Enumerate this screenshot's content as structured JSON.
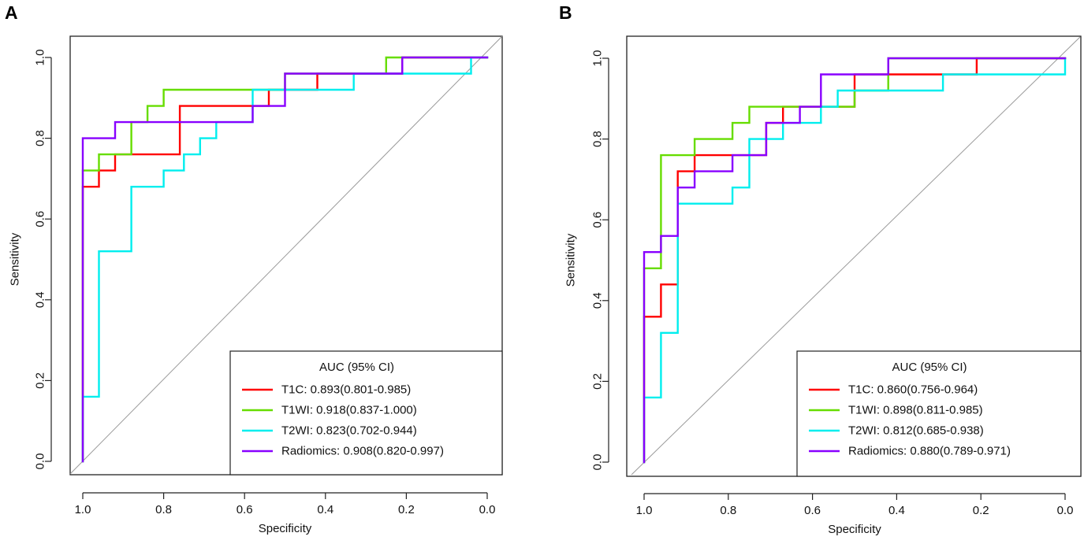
{
  "chart_data": [
    {
      "type": "line",
      "panel_label": "A",
      "xlabel": "Specificity",
      "ylabel": "Sensitivity",
      "xlim": [
        1.0,
        0.0
      ],
      "ylim": [
        0.0,
        1.0
      ],
      "xticks": [
        "1.0",
        "0.8",
        "0.6",
        "0.4",
        "0.2",
        "0.0"
      ],
      "yticks": [
        "0.0",
        "0.2",
        "0.4",
        "0.6",
        "0.8",
        "1.0"
      ],
      "diagonal": true,
      "legend_title": "AUC (95% CI)",
      "legend_position": "bottom-right",
      "series": [
        {
          "name": "T1C",
          "label": "T1C: 0.893(0.801-0.985)",
          "color": "#ff0000",
          "points": [
            [
              1.0,
              0.0
            ],
            [
              1.0,
              0.68
            ],
            [
              0.96,
              0.68
            ],
            [
              0.96,
              0.72
            ],
            [
              0.92,
              0.72
            ],
            [
              0.92,
              0.76
            ],
            [
              0.76,
              0.76
            ],
            [
              0.76,
              0.88
            ],
            [
              0.54,
              0.88
            ],
            [
              0.54,
              0.92
            ],
            [
              0.42,
              0.92
            ],
            [
              0.42,
              0.96
            ],
            [
              0.21,
              0.96
            ],
            [
              0.21,
              1.0
            ],
            [
              0.0,
              1.0
            ]
          ]
        },
        {
          "name": "T1WI",
          "label": "T1WI: 0.918(0.837-1.000)",
          "color": "#66dd00",
          "points": [
            [
              1.0,
              0.0
            ],
            [
              1.0,
              0.72
            ],
            [
              0.96,
              0.72
            ],
            [
              0.96,
              0.76
            ],
            [
              0.88,
              0.76
            ],
            [
              0.88,
              0.84
            ],
            [
              0.84,
              0.84
            ],
            [
              0.84,
              0.88
            ],
            [
              0.8,
              0.88
            ],
            [
              0.8,
              0.92
            ],
            [
              0.5,
              0.92
            ],
            [
              0.5,
              0.96
            ],
            [
              0.38,
              0.96
            ],
            [
              0.25,
              0.96
            ],
            [
              0.25,
              1.0
            ],
            [
              0.0,
              1.0
            ]
          ]
        },
        {
          "name": "T2WI",
          "label": "T2WI: 0.823(0.702-0.944)",
          "color": "#00eeee",
          "points": [
            [
              1.0,
              0.0
            ],
            [
              1.0,
              0.16
            ],
            [
              0.96,
              0.16
            ],
            [
              0.96,
              0.52
            ],
            [
              0.88,
              0.52
            ],
            [
              0.88,
              0.68
            ],
            [
              0.8,
              0.68
            ],
            [
              0.8,
              0.72
            ],
            [
              0.75,
              0.72
            ],
            [
              0.75,
              0.76
            ],
            [
              0.71,
              0.76
            ],
            [
              0.71,
              0.8
            ],
            [
              0.67,
              0.8
            ],
            [
              0.67,
              0.84
            ],
            [
              0.58,
              0.84
            ],
            [
              0.58,
              0.92
            ],
            [
              0.33,
              0.92
            ],
            [
              0.33,
              0.96
            ],
            [
              0.04,
              0.96
            ],
            [
              0.04,
              1.0
            ],
            [
              0.0,
              1.0
            ]
          ]
        },
        {
          "name": "Radiomics",
          "label": "Radiomics: 0.908(0.820-0.997)",
          "color": "#8800ff",
          "points": [
            [
              1.0,
              0.0
            ],
            [
              1.0,
              0.8
            ],
            [
              0.92,
              0.8
            ],
            [
              0.92,
              0.84
            ],
            [
              0.58,
              0.84
            ],
            [
              0.58,
              0.88
            ],
            [
              0.5,
              0.88
            ],
            [
              0.5,
              0.96
            ],
            [
              0.21,
              0.96
            ],
            [
              0.21,
              1.0
            ],
            [
              0.0,
              1.0
            ]
          ]
        }
      ]
    },
    {
      "type": "line",
      "panel_label": "B",
      "xlabel": "Specificity",
      "ylabel": "Sensitivity",
      "xlim": [
        1.0,
        0.0
      ],
      "ylim": [
        0.0,
        1.0
      ],
      "xticks": [
        "1.0",
        "0.8",
        "0.6",
        "0.4",
        "0.2",
        "0.0"
      ],
      "yticks": [
        "0.0",
        "0.2",
        "0.4",
        "0.6",
        "0.8",
        "1.0"
      ],
      "diagonal": true,
      "legend_title": "AUC (95% CI)",
      "legend_position": "bottom-right",
      "series": [
        {
          "name": "T1C",
          "label": "T1C: 0.860(0.756-0.964)",
          "color": "#ff0000",
          "points": [
            [
              1.0,
              0.0
            ],
            [
              1.0,
              0.36
            ],
            [
              0.96,
              0.36
            ],
            [
              0.96,
              0.44
            ],
            [
              0.92,
              0.44
            ],
            [
              0.92,
              0.72
            ],
            [
              0.88,
              0.72
            ],
            [
              0.88,
              0.76
            ],
            [
              0.71,
              0.76
            ],
            [
              0.71,
              0.84
            ],
            [
              0.67,
              0.84
            ],
            [
              0.67,
              0.88
            ],
            [
              0.5,
              0.88
            ],
            [
              0.5,
              0.96
            ],
            [
              0.21,
              0.96
            ],
            [
              0.21,
              1.0
            ],
            [
              0.0,
              1.0
            ]
          ]
        },
        {
          "name": "T1WI",
          "label": "T1WI: 0.898(0.811-0.985)",
          "color": "#66dd00",
          "points": [
            [
              1.0,
              0.0
            ],
            [
              1.0,
              0.48
            ],
            [
              0.96,
              0.48
            ],
            [
              0.96,
              0.76
            ],
            [
              0.88,
              0.76
            ],
            [
              0.88,
              0.8
            ],
            [
              0.79,
              0.8
            ],
            [
              0.79,
              0.84
            ],
            [
              0.75,
              0.84
            ],
            [
              0.75,
              0.88
            ],
            [
              0.5,
              0.88
            ],
            [
              0.5,
              0.92
            ],
            [
              0.42,
              0.92
            ],
            [
              0.42,
              1.0
            ],
            [
              0.0,
              1.0
            ]
          ]
        },
        {
          "name": "T2WI",
          "label": "T2WI: 0.812(0.685-0.938)",
          "color": "#00eeee",
          "points": [
            [
              1.0,
              0.0
            ],
            [
              1.0,
              0.16
            ],
            [
              0.96,
              0.16
            ],
            [
              0.96,
              0.32
            ],
            [
              0.92,
              0.32
            ],
            [
              0.92,
              0.64
            ],
            [
              0.79,
              0.64
            ],
            [
              0.79,
              0.68
            ],
            [
              0.75,
              0.68
            ],
            [
              0.75,
              0.8
            ],
            [
              0.67,
              0.8
            ],
            [
              0.67,
              0.84
            ],
            [
              0.58,
              0.84
            ],
            [
              0.58,
              0.88
            ],
            [
              0.54,
              0.88
            ],
            [
              0.54,
              0.92
            ],
            [
              0.29,
              0.92
            ],
            [
              0.29,
              0.96
            ],
            [
              0.0,
              0.96
            ],
            [
              0.0,
              1.0
            ]
          ]
        },
        {
          "name": "Radiomics",
          "label": "Radiomics: 0.880(0.789-0.971)",
          "color": "#8800ff",
          "points": [
            [
              1.0,
              0.0
            ],
            [
              1.0,
              0.52
            ],
            [
              0.96,
              0.52
            ],
            [
              0.96,
              0.56
            ],
            [
              0.92,
              0.56
            ],
            [
              0.92,
              0.68
            ],
            [
              0.88,
              0.68
            ],
            [
              0.88,
              0.72
            ],
            [
              0.79,
              0.72
            ],
            [
              0.79,
              0.76
            ],
            [
              0.71,
              0.76
            ],
            [
              0.71,
              0.84
            ],
            [
              0.63,
              0.84
            ],
            [
              0.63,
              0.88
            ],
            [
              0.58,
              0.88
            ],
            [
              0.58,
              0.96
            ],
            [
              0.42,
              0.96
            ],
            [
              0.42,
              1.0
            ],
            [
              0.0,
              1.0
            ]
          ]
        }
      ]
    }
  ]
}
